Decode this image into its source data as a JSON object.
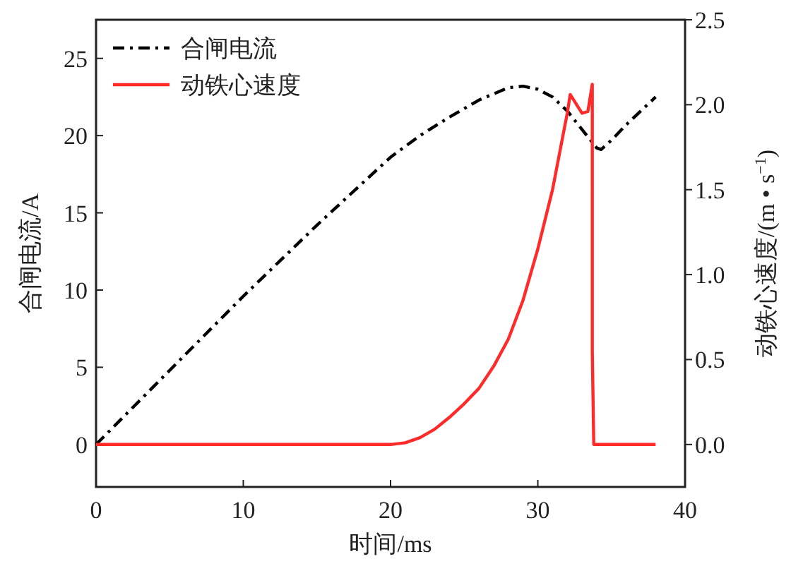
{
  "chart_data": {
    "type": "line",
    "xlabel": "时间/ms",
    "ylabel": "合闸电流/A",
    "y2label": "动铁心速度/(m • s$^{−1}$)",
    "legend": "top left",
    "grid": false,
    "xlim": [
      0,
      40
    ],
    "xticks": [
      0,
      10,
      20,
      30,
      40
    ],
    "ylim": [
      -2.75,
      27.5
    ],
    "yticks": [
      0,
      5,
      10,
      15,
      20,
      25
    ],
    "y2lim": [
      -0.25,
      2.5
    ],
    "y2ticks": [
      {
        "value": 0,
        "label": "0.0"
      },
      {
        "value": 0.5,
        "label": "0.5"
      },
      {
        "value": 1,
        "label": "1.0"
      },
      {
        "value": 1.5,
        "label": "1.5"
      },
      {
        "value": 2,
        "label": "2.0"
      },
      {
        "value": 2.5,
        "label": "2.5"
      }
    ],
    "series": [
      {
        "name": "合闸电流",
        "color": "#000000",
        "line_style": "dashdot",
        "x": [
          0,
          5,
          10,
          15,
          20,
          22,
          24,
          26,
          28,
          29,
          30,
          31,
          32,
          33,
          34,
          34.3,
          35,
          36,
          37,
          38
        ],
        "values": [
          0,
          4.8,
          9.6,
          14.2,
          18.6,
          20.0,
          21.2,
          22.3,
          23.1,
          23.2,
          23.0,
          22.5,
          21.6,
          20.4,
          19.2,
          19.1,
          19.7,
          20.7,
          21.6,
          22.5
        ]
      },
      {
        "name": "动铁心速度",
        "color": "#ff2a2a",
        "line_style": "solid",
        "axis": "y2",
        "x": [
          0,
          20,
          21,
          22,
          23,
          24,
          25,
          26,
          27,
          28,
          29,
          30,
          31,
          32,
          32.2,
          33,
          33.4,
          33.7,
          33.7,
          33.8,
          38
        ],
        "values": [
          0,
          0,
          0.01,
          0.04,
          0.09,
          0.16,
          0.24,
          0.33,
          0.46,
          0.62,
          0.85,
          1.15,
          1.5,
          1.95,
          2.06,
          1.95,
          1.96,
          2.12,
          0.55,
          0,
          0
        ]
      }
    ]
  }
}
